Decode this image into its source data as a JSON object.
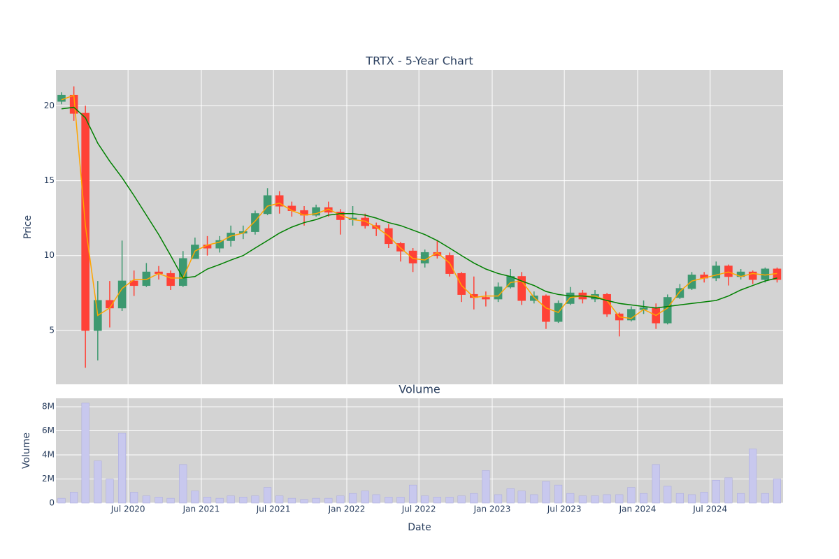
{
  "chart_data": [
    {
      "type": "candlestick",
      "title": "TRTX - 5-Year Chart",
      "ylabel": "Price",
      "x": [
        "2020-01",
        "2020-02",
        "2020-03",
        "2020-04",
        "2020-05",
        "2020-06",
        "2020-07",
        "2020-08",
        "2020-09",
        "2020-10",
        "2020-11",
        "2020-12",
        "2021-01",
        "2021-02",
        "2021-03",
        "2021-04",
        "2021-05",
        "2021-06",
        "2021-07",
        "2021-08",
        "2021-09",
        "2021-10",
        "2021-11",
        "2021-12",
        "2022-01",
        "2022-02",
        "2022-03",
        "2022-04",
        "2022-05",
        "2022-06",
        "2022-07",
        "2022-08",
        "2022-09",
        "2022-10",
        "2022-11",
        "2022-12",
        "2023-01",
        "2023-02",
        "2023-03",
        "2023-04",
        "2023-05",
        "2023-06",
        "2023-07",
        "2023-08",
        "2023-09",
        "2023-10",
        "2023-11",
        "2023-12",
        "2024-01",
        "2024-02",
        "2024-03",
        "2024-04",
        "2024-05",
        "2024-06",
        "2024-07",
        "2024-08",
        "2024-09",
        "2024-10",
        "2024-11",
        "2024-12"
      ],
      "open": [
        20.3,
        20.7,
        19.5,
        5.0,
        7.0,
        6.5,
        8.3,
        8.0,
        8.9,
        8.8,
        8.0,
        9.8,
        10.7,
        10.5,
        11.0,
        11.5,
        11.6,
        12.8,
        14.0,
        13.3,
        13.0,
        12.7,
        13.2,
        12.9,
        12.4,
        12.5,
        12.0,
        11.8,
        10.8,
        10.3,
        9.5,
        10.2,
        10.0,
        8.8,
        7.4,
        7.2,
        7.1,
        7.9,
        8.6,
        7.0,
        7.3,
        5.6,
        6.8,
        7.5,
        7.1,
        7.4,
        6.1,
        5.7,
        6.4,
        6.5,
        5.5,
        7.2,
        7.8,
        8.7,
        8.5,
        9.3,
        8.6,
        8.9,
        8.4,
        9.1
      ],
      "high": [
        20.9,
        21.3,
        20.0,
        8.3,
        8.3,
        11.0,
        9.0,
        9.5,
        9.3,
        9.0,
        10.3,
        11.2,
        11.3,
        11.3,
        12.0,
        12.0,
        13.0,
        14.5,
        14.3,
        13.6,
        13.3,
        13.4,
        13.6,
        13.1,
        13.3,
        12.8,
        12.2,
        12.1,
        10.9,
        10.5,
        10.4,
        11.0,
        10.2,
        8.9,
        8.6,
        7.6,
        8.2,
        9.1,
        8.9,
        7.6,
        7.4,
        7.0,
        7.9,
        7.7,
        7.7,
        7.5,
        6.2,
        6.6,
        7.0,
        6.8,
        7.4,
        8.1,
        8.9,
        8.9,
        9.6,
        9.4,
        9.1,
        9.0,
        9.2,
        9.2
      ],
      "low": [
        20.1,
        19.0,
        2.5,
        3.0,
        5.2,
        6.3,
        7.3,
        7.9,
        8.4,
        7.7,
        7.9,
        9.8,
        10.0,
        10.2,
        10.6,
        11.1,
        11.4,
        12.7,
        12.8,
        12.6,
        12.0,
        12.6,
        12.6,
        11.4,
        12.0,
        11.8,
        11.3,
        10.5,
        9.6,
        8.9,
        9.2,
        9.8,
        8.6,
        6.9,
        6.4,
        6.6,
        6.9,
        7.8,
        6.7,
        6.8,
        5.1,
        5.5,
        6.7,
        6.8,
        6.9,
        5.9,
        4.6,
        5.6,
        6.1,
        5.1,
        5.4,
        7.1,
        7.7,
        8.2,
        8.3,
        8.0,
        8.4,
        8.1,
        8.2,
        8.2
      ],
      "close": [
        20.7,
        19.5,
        5.0,
        7.0,
        6.5,
        8.3,
        8.0,
        8.9,
        8.8,
        8.0,
        9.8,
        10.7,
        10.5,
        11.0,
        11.5,
        11.6,
        12.8,
        14.0,
        13.3,
        13.0,
        12.7,
        13.2,
        12.9,
        12.4,
        12.5,
        12.0,
        11.8,
        10.8,
        10.3,
        9.5,
        10.2,
        10.0,
        8.8,
        7.4,
        7.2,
        7.1,
        7.9,
        8.6,
        7.0,
        7.3,
        5.6,
        6.8,
        7.5,
        7.1,
        7.4,
        6.1,
        5.7,
        6.4,
        6.5,
        5.5,
        7.2,
        7.8,
        8.7,
        8.5,
        9.3,
        8.6,
        8.9,
        8.4,
        9.1,
        8.4
      ],
      "increasing_color": "#3d9970",
      "decreasing_color": "#ff4136",
      "lines": [
        {
          "color": "#ffa500",
          "values": [
            20.4,
            20.7,
            12.0,
            6.0,
            6.5,
            7.8,
            8.4,
            8.4,
            8.8,
            8.5,
            8.5,
            10.3,
            10.7,
            10.9,
            11.3,
            11.5,
            12.3,
            13.3,
            13.5,
            13.0,
            12.7,
            12.8,
            13.1,
            12.7,
            12.4,
            12.3,
            11.9,
            11.3,
            10.5,
            9.8,
            9.7,
            10.2,
            9.5,
            8.0,
            7.2,
            7.3,
            7.3,
            8.2,
            8.3,
            7.2,
            6.5,
            6.2,
            7.2,
            7.3,
            7.3,
            7.0,
            5.9,
            5.8,
            6.4,
            6.0,
            6.5,
            7.6,
            8.3,
            8.5,
            8.7,
            8.9,
            8.6,
            8.8,
            8.7,
            8.8
          ]
        },
        {
          "color": "#008000",
          "values": [
            19.8,
            19.9,
            19.2,
            17.5,
            16.3,
            15.2,
            14.0,
            12.7,
            11.4,
            10.0,
            8.5,
            8.6,
            9.1,
            9.4,
            9.7,
            10.0,
            10.5,
            11.0,
            11.5,
            11.9,
            12.2,
            12.4,
            12.7,
            12.8,
            12.8,
            12.7,
            12.5,
            12.2,
            12.0,
            11.7,
            11.4,
            11.0,
            10.5,
            10.0,
            9.5,
            9.1,
            8.8,
            8.6,
            8.3,
            8.0,
            7.6,
            7.4,
            7.3,
            7.3,
            7.2,
            7.0,
            6.8,
            6.7,
            6.6,
            6.5,
            6.6,
            6.7,
            6.8,
            6.9,
            7.0,
            7.3,
            7.7,
            8.0,
            8.3,
            8.5
          ]
        }
      ],
      "xlim": [
        "2020-01-02",
        "2024-12-31"
      ],
      "ylim": [
        1.4,
        22.4
      ],
      "yticks": [
        5,
        10,
        15,
        20
      ],
      "grid": true
    },
    {
      "type": "bar",
      "title": "Volume",
      "xlabel": "Date",
      "ylabel": "Volume",
      "x": [
        "2020-01",
        "2020-02",
        "2020-03",
        "2020-04",
        "2020-05",
        "2020-06",
        "2020-07",
        "2020-08",
        "2020-09",
        "2020-10",
        "2020-11",
        "2020-12",
        "2021-01",
        "2021-02",
        "2021-03",
        "2021-04",
        "2021-05",
        "2021-06",
        "2021-07",
        "2021-08",
        "2021-09",
        "2021-10",
        "2021-11",
        "2021-12",
        "2022-01",
        "2022-02",
        "2022-03",
        "2022-04",
        "2022-05",
        "2022-06",
        "2022-07",
        "2022-08",
        "2022-09",
        "2022-10",
        "2022-11",
        "2022-12",
        "2023-01",
        "2023-02",
        "2023-03",
        "2023-04",
        "2023-05",
        "2023-06",
        "2023-07",
        "2023-08",
        "2023-09",
        "2023-10",
        "2023-11",
        "2023-12",
        "2024-01",
        "2024-02",
        "2024-03",
        "2024-04",
        "2024-05",
        "2024-06",
        "2024-07",
        "2024-08",
        "2024-09",
        "2024-10",
        "2024-11",
        "2024-12"
      ],
      "values": [
        400000,
        900000,
        8300000,
        3500000,
        2000000,
        5800000,
        900000,
        600000,
        500000,
        400000,
        3200000,
        1000000,
        500000,
        400000,
        600000,
        500000,
        600000,
        1300000,
        600000,
        400000,
        300000,
        400000,
        400000,
        600000,
        800000,
        1000000,
        700000,
        500000,
        500000,
        1500000,
        600000,
        500000,
        500000,
        600000,
        800000,
        2700000,
        700000,
        1200000,
        1000000,
        700000,
        1800000,
        1500000,
        800000,
        600000,
        600000,
        700000,
        700000,
        1300000,
        800000,
        3200000,
        1400000,
        800000,
        700000,
        900000,
        1900000,
        2100000,
        800000,
        4500000,
        800000,
        2000000
      ],
      "color": "#c8c8ee",
      "xlim": [
        "2020-01-02",
        "2024-12-31"
      ],
      "xticks": [
        {
          "value": "2020-07",
          "label": "Jul 2020"
        },
        {
          "value": "2021-01",
          "label": "Jan 2021"
        },
        {
          "value": "2021-07",
          "label": "Jul 2021"
        },
        {
          "value": "2022-01",
          "label": "Jan 2022"
        },
        {
          "value": "2022-07",
          "label": "Jul 2022"
        },
        {
          "value": "2023-01",
          "label": "Jan 2023"
        },
        {
          "value": "2023-07",
          "label": "Jul 2023"
        },
        {
          "value": "2024-01",
          "label": "Jan 2024"
        },
        {
          "value": "2024-07",
          "label": "Jul 2024"
        }
      ],
      "ylim": [
        0,
        8700000
      ],
      "yticks": [
        0,
        {
          "value": 2000000,
          "label": "2M"
        },
        {
          "value": 4000000,
          "label": "4M"
        },
        {
          "value": 6000000,
          "label": "6M"
        },
        {
          "value": 8000000,
          "label": "8M"
        }
      ],
      "grid": true
    }
  ]
}
